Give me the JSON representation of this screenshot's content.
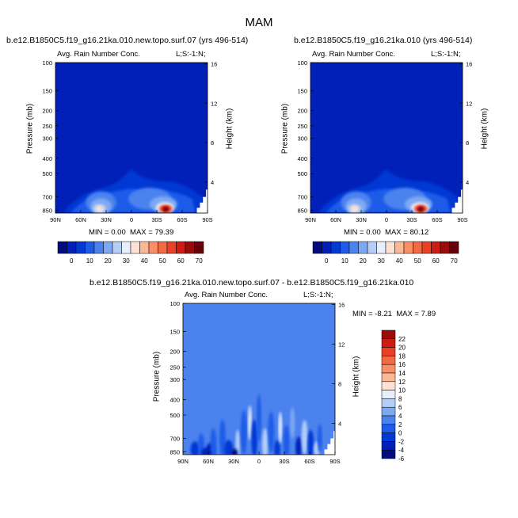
{
  "figure": {
    "title": "MAM",
    "bottom_case_title": "b.e12.B1850C5.f19_g16.21ka.010.new.topo.surf.07 - b.e12.B1850C5.f19_g16.21ka.010"
  },
  "colors": {
    "abs_scale": [
      "#000c7f",
      "#0020b8",
      "#0039d4",
      "#1e5be8",
      "#4c82ee",
      "#7fa8f2",
      "#b4cef7",
      "#e8eefb",
      "#fde2d3",
      "#fbb896",
      "#f78f67",
      "#f26a44",
      "#e84127",
      "#cc1d14",
      "#990c0b",
      "#66000a"
    ],
    "diff_scale": [
      "#000c7f",
      "#0020b8",
      "#0039d4",
      "#1e5be8",
      "#4c82ee",
      "#7fa8f2",
      "#b4cef7",
      "#e8eefb",
      "#fde2d3",
      "#fbb896",
      "#f78f67",
      "#f26a44",
      "#e84127",
      "#cc1d14",
      "#990c0b"
    ]
  },
  "chart_data": [
    {
      "type": "heatmap",
      "case_title": "b.e12.B1850C5.f19_g16.21ka.010.new.topo.surf.07 (yrs 496-514)",
      "variable": "Avg. Rain Number Conc.",
      "tag": "L;S:-1:N;",
      "xlabel": "",
      "ylabel": "Pressure (mb)",
      "y2label": "Height (km)",
      "x_ticks": [
        "90N",
        "60N",
        "30N",
        "0",
        "30S",
        "60S",
        "90S"
      ],
      "y_ticks": [
        "100",
        "150",
        "200",
        "250",
        "300",
        "400",
        "500",
        "700",
        "850"
      ],
      "y2_ticks": [
        "16",
        "12",
        "8",
        "4"
      ],
      "min_label": "MIN =",
      "min_value": "0.00",
      "max_label": "MAX =",
      "max_value": "79.39",
      "colorbar_ticks": [
        "0",
        "10",
        "20",
        "30",
        "40",
        "50",
        "60",
        "70"
      ]
    },
    {
      "type": "heatmap",
      "case_title": "b.e12.B1850C5.f19_g16.21ka.010 (yrs 496-514)",
      "variable": "Avg. Rain Number Conc.",
      "tag": "L;S:-1:N;",
      "xlabel": "",
      "ylabel": "Pressure (mb)",
      "y2label": "Height (km)",
      "x_ticks": [
        "90N",
        "60N",
        "30N",
        "0",
        "30S",
        "60S",
        "90S"
      ],
      "y_ticks": [
        "100",
        "150",
        "200",
        "250",
        "300",
        "400",
        "500",
        "700",
        "850"
      ],
      "y2_ticks": [
        "16",
        "12",
        "8",
        "4"
      ],
      "min_label": "MIN =",
      "min_value": "0.00",
      "max_label": "MAX =",
      "max_value": "80.12",
      "colorbar_ticks": [
        "0",
        "10",
        "20",
        "30",
        "40",
        "50",
        "60",
        "70"
      ]
    },
    {
      "type": "heatmap",
      "case_title": "b.e12.B1850C5.f19_g16.21ka.010.new.topo.surf.07 - b.e12.B1850C5.f19_g16.21ka.010",
      "variable": "Avg. Rain Number Conc.",
      "tag": "L;S:-1:N;",
      "xlabel": "",
      "ylabel": "Pressure (mb)",
      "y2label": "Height (km)",
      "x_ticks": [
        "90N",
        "60N",
        "30N",
        "0",
        "30S",
        "60S",
        "90S"
      ],
      "y_ticks": [
        "100",
        "150",
        "200",
        "250",
        "300",
        "400",
        "500",
        "700",
        "850"
      ],
      "y2_ticks": [
        "16",
        "12",
        "8",
        "4"
      ],
      "min_label": "MIN =",
      "min_value": "-8.21",
      "max_label": "MAX =",
      "max_value": "7.89",
      "colorbar_ticks": [
        "22",
        "20",
        "18",
        "16",
        "14",
        "12",
        "10",
        "8",
        "6",
        "4",
        "2",
        "0",
        "-2",
        "-4",
        "-6"
      ]
    }
  ]
}
